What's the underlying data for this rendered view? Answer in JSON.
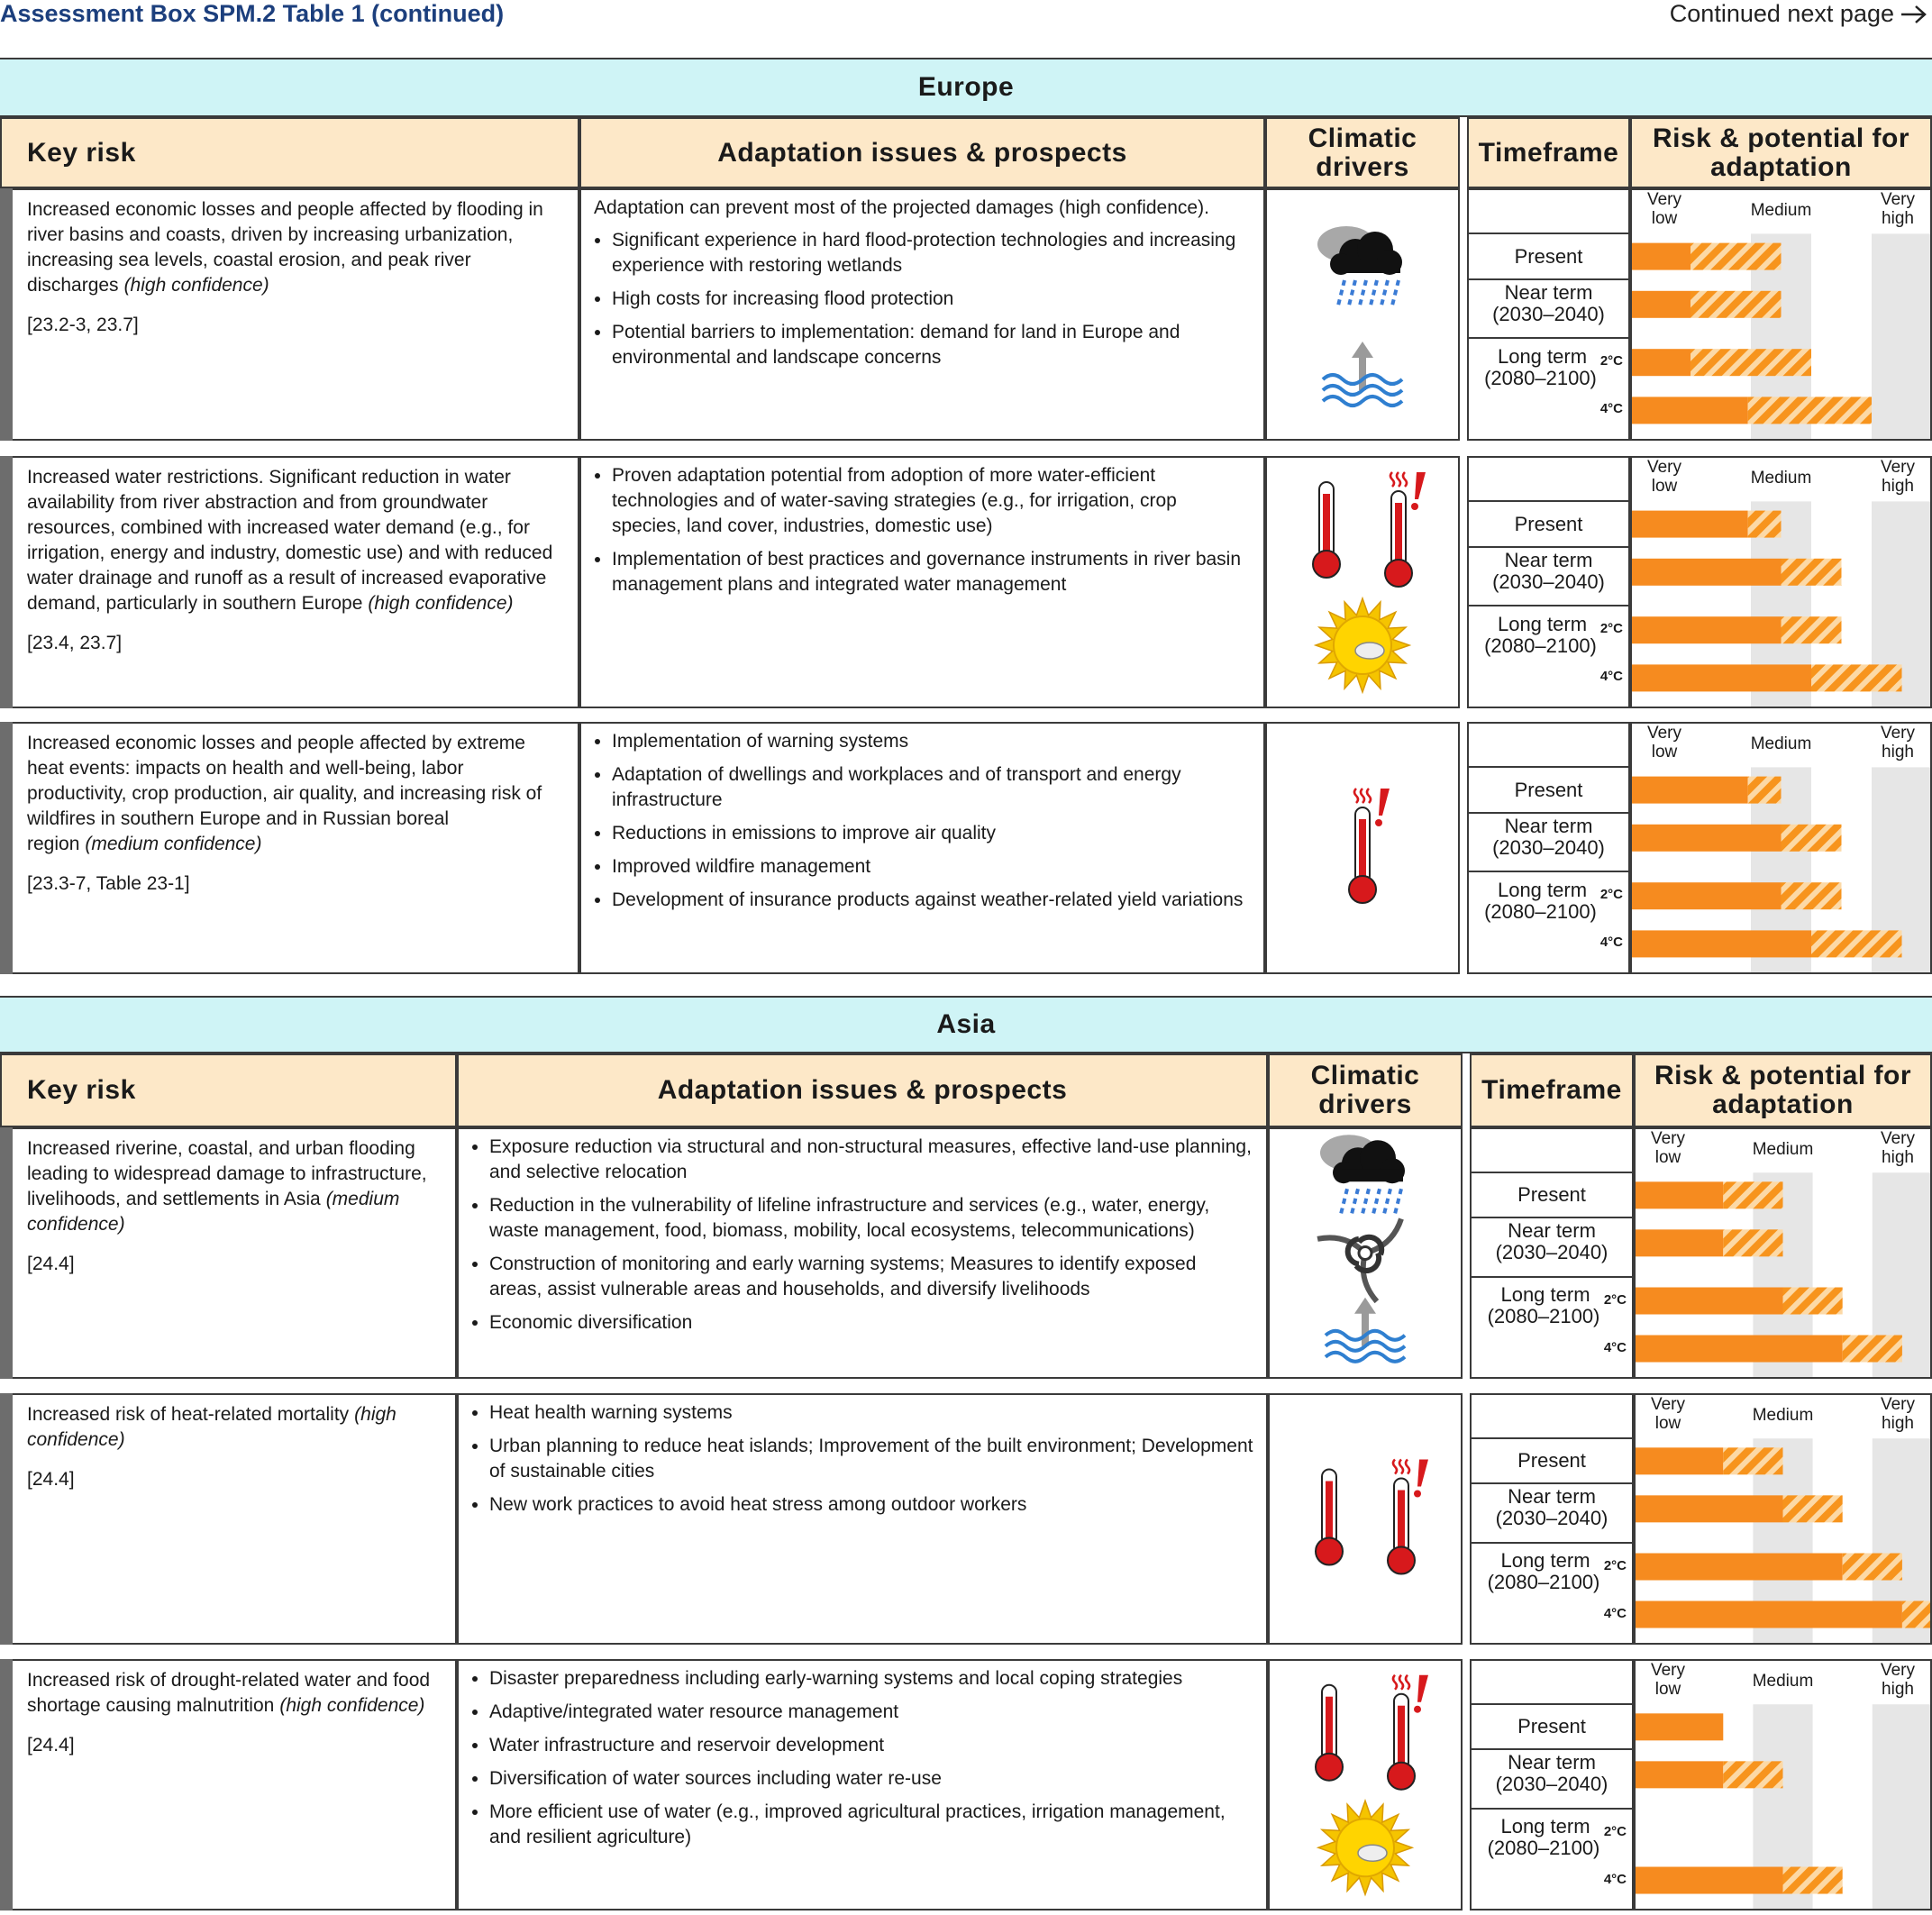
{
  "header": {
    "title": "Assessment Box SPM.2 Table 1 (continued)",
    "continued": "Continued next page"
  },
  "regions": [
    {
      "name": "Europe",
      "columns": [
        "Key risk",
        "Adaptation issues & prospects",
        "Climatic drivers",
        "Timeframe",
        "Risk & potential for adaptation"
      ],
      "scale": {
        "labels": [
          "Very low",
          "Medium",
          "Very high"
        ],
        "range": [
          0,
          100
        ]
      },
      "timeframes": {
        "present": "Present",
        "near": "Near term",
        "near_years": "(2030–2040)",
        "long": "Long term",
        "long_years": "(2080–2100)",
        "warming": [
          "2°C",
          "4°C"
        ]
      },
      "rows": [
        {
          "risk": "Increased economic losses and people affected by flooding in river basins and coasts, driven by increasing urbanization,  increasing sea levels, coastal erosion, and peak river discharges",
          "confidence": "(high confidence)",
          "reference": "[23.2-3, 23.7]",
          "intro": "Adaptation can prevent most of the projected damages (high confidence).",
          "measures": [
            "Significant experience in hard flood-protection technologies and increasing experience with restoring wetlands",
            "High costs for increasing flood protection",
            "Potential barriers to implementation: demand for land in Europe and environmental and landscape concerns"
          ],
          "levels": [
            [
              20,
              50
            ],
            [
              20,
              50
            ],
            [
              20,
              60
            ],
            [
              39,
              80
            ]
          ]
        },
        {
          "risk": "Increased water restrictions. Significant reduction in water availability from river abstraction and from groundwater resources, combined with increased water demand (e.g., for irrigation, energy and industry, domestic use) and with reduced water drainage and runoff as a result of increased evaporative demand, particularly in southern Europe",
          "confidence": "(high confidence)",
          "reference": "[23.4, 23.7]",
          "measures": [
            "Proven adaptation potential from adoption of more water-efficient technologies and of water-saving strategies (e.g., for irrigation, crop species, land cover, industries, domestic use)",
            "Implementation of best practices and governance instruments in river basin management plans and integrated water management"
          ],
          "levels": [
            [
              39,
              50
            ],
            [
              50,
              70
            ],
            [
              50,
              70
            ],
            [
              60,
              90
            ]
          ]
        },
        {
          "risk": "Increased economic losses and people affected by extreme heat events: impacts on health and well-being, labor productivity, crop production, air quality, and increasing risk of wildfires in southern Europe and in Russian boreal region",
          "confidence": "(medium confidence)",
          "reference": "[23.3-7, Table 23-1]",
          "measures": [
            "Implementation of warning systems",
            "Adaptation of dwellings and workplaces and of transport and energy infrastructure",
            "Reductions in emissions to improve air quality",
            "Improved wildfire management",
            "Development of insurance products against weather-related yield variations"
          ],
          "levels": [
            [
              39,
              50
            ],
            [
              50,
              70
            ],
            [
              50,
              70
            ],
            [
              60,
              90
            ]
          ]
        }
      ]
    },
    {
      "name": "Asia",
      "columns": [
        "Key risk",
        "Adaptation issues & prospects",
        "Climatic drivers",
        "Timeframe",
        "Risk & potential for adaptation"
      ],
      "scale": {
        "labels": [
          "Very low",
          "Medium",
          "Very high"
        ],
        "range": [
          0,
          100
        ]
      },
      "timeframes": {
        "present": "Present",
        "near": "Near term",
        "near_years": "(2030–2040)",
        "long": "Long term",
        "long_years": "(2080–2100)",
        "warming": [
          "2°C",
          "4°C"
        ]
      },
      "rows": [
        {
          "risk": "Increased riverine, coastal, and urban flooding leading to widespread damage to infrastructure, livelihoods, and settlements in Asia",
          "confidence": "(medium confidence)",
          "reference": "[24.4]",
          "measures": [
            "Exposure reduction via structural and non-structural measures, effective land-use planning, and selective relocation",
            "Reduction in the vulnerability of lifeline infrastructure and services (e.g., water, energy, waste management, food, biomass, mobility, local ecosystems, telecommunications)",
            "Construction of monitoring and early warning systems; Measures to identify exposed areas, assist vulnerable areas and households, and diversify livelihoods",
            "Economic diversification"
          ],
          "levels": [
            [
              30,
              50
            ],
            [
              30,
              50
            ],
            [
              50,
              70
            ],
            [
              70,
              90
            ]
          ]
        },
        {
          "risk": "Increased risk of heat-related mortality",
          "confidence": "(high confidence)",
          "reference": "[24.4]",
          "measures": [
            "Heat health warning systems",
            "Urban planning to reduce heat islands; Improvement of the built environment; Development of sustainable cities",
            "New work practices to avoid heat stress among outdoor workers"
          ],
          "levels": [
            [
              30,
              50
            ],
            [
              50,
              70
            ],
            [
              70,
              90
            ],
            [
              90,
              100
            ]
          ]
        },
        {
          "risk": "Increased risk of drought-related water and food shortage causing malnutrition",
          "confidence": "(high confidence)",
          "reference": "[24.4]",
          "measures": [
            "Disaster preparedness including early-warning systems and local coping strategies",
            "Adaptive/integrated water resource management",
            "Water infrastructure and reservoir development",
            "Diversification of water sources including water re-use",
            "More efficient use of water (e.g., improved agricultural practices, irrigation management, and resilient agriculture)"
          ],
          "levels": [
            [
              30,
              30
            ],
            [
              30,
              50
            ],
            null,
            [
              50,
              70
            ]
          ]
        }
      ]
    }
  ]
}
